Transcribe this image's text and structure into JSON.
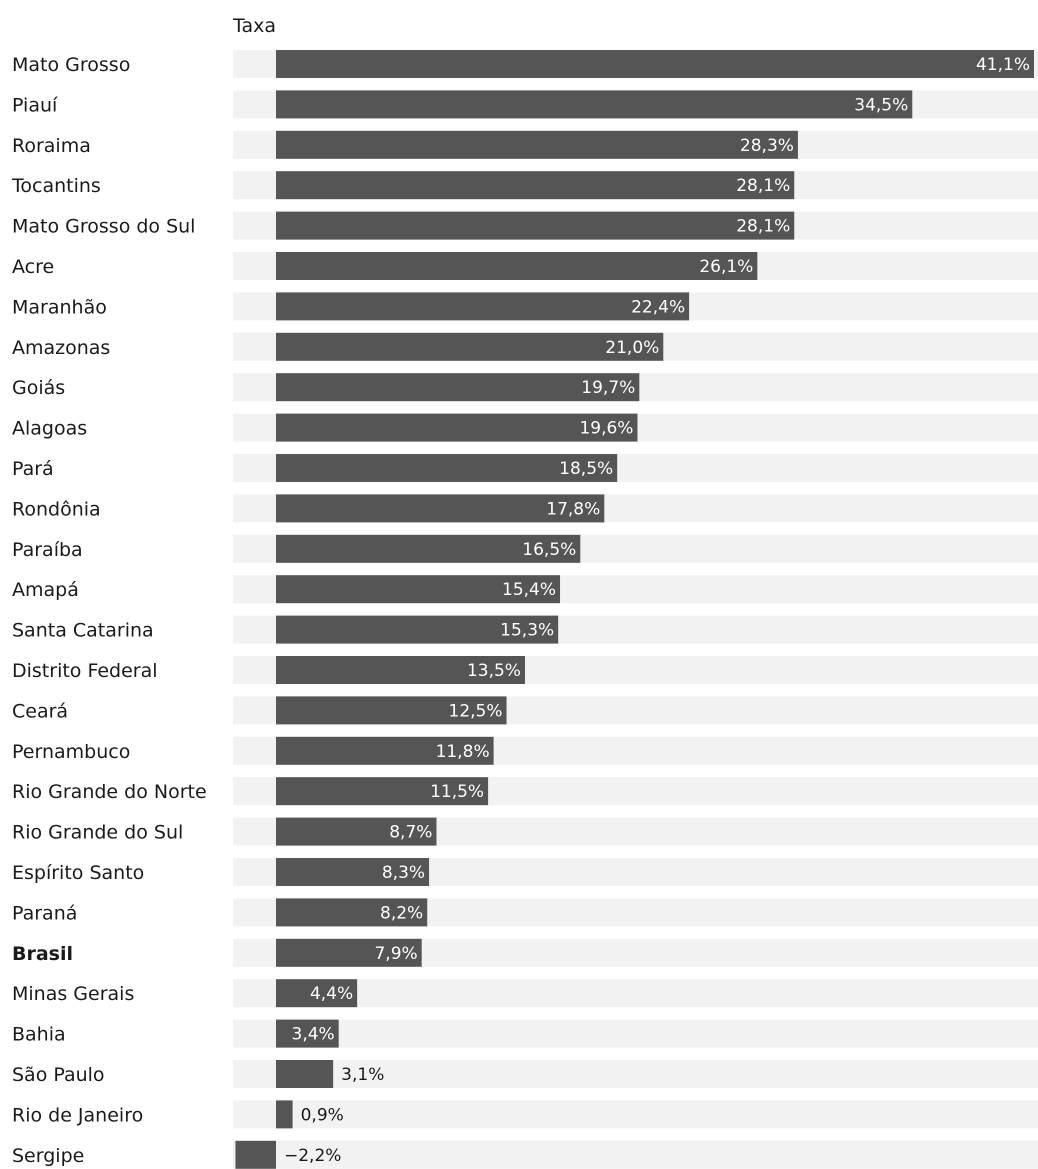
{
  "chart_data": {
    "type": "bar",
    "orientation": "horizontal",
    "header": "Taxa",
    "categories": [
      "Mato Grosso",
      "Piauí",
      "Roraima",
      "Tocantins",
      "Mato Grosso do Sul",
      "Acre",
      "Maranhão",
      "Amazonas",
      "Goiás",
      "Alagoas",
      "Pará",
      "Rondônia",
      "Paraíba",
      "Amapá",
      "Santa Catarina",
      "Distrito Federal",
      "Ceará",
      "Pernambuco",
      "Rio Grande do Norte",
      "Rio Grande do Sul",
      "Espírito Santo",
      "Paraná",
      "Brasil",
      "Minas Gerais",
      "Bahia",
      "São Paulo",
      "Rio de Janeiro",
      "Sergipe"
    ],
    "values": [
      41.1,
      34.5,
      28.3,
      28.1,
      28.1,
      26.1,
      22.4,
      21.0,
      19.7,
      19.6,
      18.5,
      17.8,
      16.5,
      15.4,
      15.3,
      13.5,
      12.5,
      11.8,
      11.5,
      8.7,
      8.3,
      8.2,
      7.9,
      4.4,
      3.4,
      3.1,
      0.9,
      -2.2
    ],
    "value_labels": [
      "41,1%",
      "34,5%",
      "28,3%",
      "28,1%",
      "28,1%",
      "26,1%",
      "22,4%",
      "21,0%",
      "19,7%",
      "19,6%",
      "18,5%",
      "17,8%",
      "16,5%",
      "15,4%",
      "15,3%",
      "13,5%",
      "12,5%",
      "11,8%",
      "11,5%",
      "8,7%",
      "8,3%",
      "8,2%",
      "7,9%",
      "4,4%",
      "3,4%",
      "3,1%",
      "0,9%",
      "−2,2%"
    ],
    "highlight": [
      "Brasil"
    ],
    "xlim": [
      -2.2,
      41.1
    ],
    "grid": false,
    "legend": "none",
    "colors": {
      "bar": "#555555",
      "track": "#f2f2f2",
      "label_inside": "#ffffff",
      "label_outside": "#1a1a1a"
    }
  }
}
